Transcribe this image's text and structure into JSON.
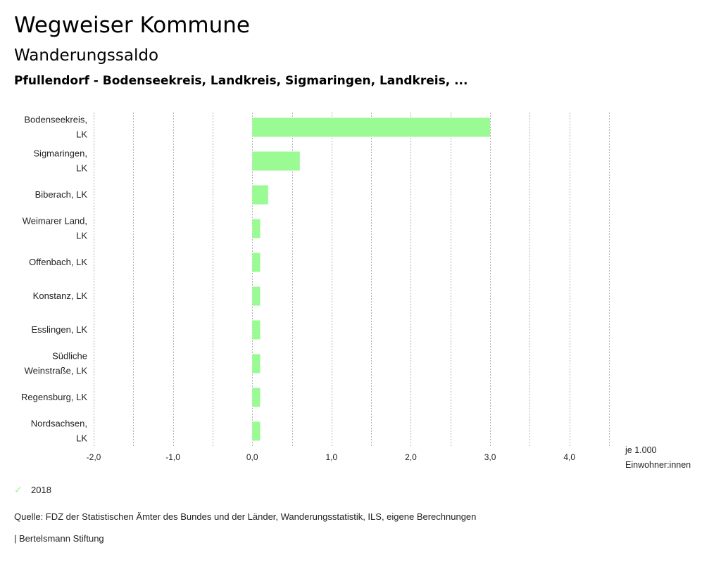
{
  "header": {
    "title": "Wegweiser Kommune",
    "subtitle": "Wanderungssaldo",
    "region": "Pfullendorf - Bodenseekreis, Landkreis, Sigmaringen, Landkreis, ..."
  },
  "unit_label": [
    "je 1.000",
    "Einwohner:innen"
  ],
  "legend": {
    "label": "2018",
    "icon": "check-icon"
  },
  "source": "Quelle: FDZ der Statistischen Ämter des Bundes und der Länder, Wanderungsstatistik, ILS, eigene Berechnungen",
  "brand": "| Bertelsmann Stiftung",
  "colors": {
    "bar": "#9afa93",
    "grid": "#b3b3b3"
  },
  "chart_data": {
    "type": "bar",
    "orientation": "horizontal",
    "categories": [
      [
        "Bodenseekreis,",
        "LK"
      ],
      [
        "Sigmaringen,",
        "LK"
      ],
      [
        "Biberach, LK"
      ],
      [
        "Weimarer Land,",
        "LK"
      ],
      [
        "Offenbach, LK"
      ],
      [
        "Konstanz, LK"
      ],
      [
        "Esslingen, LK"
      ],
      [
        "Südliche",
        "Weinstraße, LK"
      ],
      [
        "Regensburg, LK"
      ],
      [
        "Nordsachsen,",
        "LK"
      ]
    ],
    "series": [
      {
        "name": "2018",
        "values": [
          3.0,
          0.6,
          0.2,
          0.1,
          0.1,
          0.1,
          0.1,
          0.1,
          0.1,
          0.1
        ]
      }
    ],
    "xlim": [
      -2.0,
      4.5
    ],
    "xticks": [
      -2.0,
      -1.0,
      0.0,
      1.0,
      2.0,
      3.0,
      4.0
    ],
    "xtick_labels": [
      "-2,0",
      "-1,0",
      "0,0",
      "1,0",
      "2,0",
      "3,0",
      "4,0"
    ],
    "grid_step": 0.5,
    "grid": true,
    "xlabel": "je 1.000 Einwohner:innen",
    "legend_position": "bottom-left"
  }
}
